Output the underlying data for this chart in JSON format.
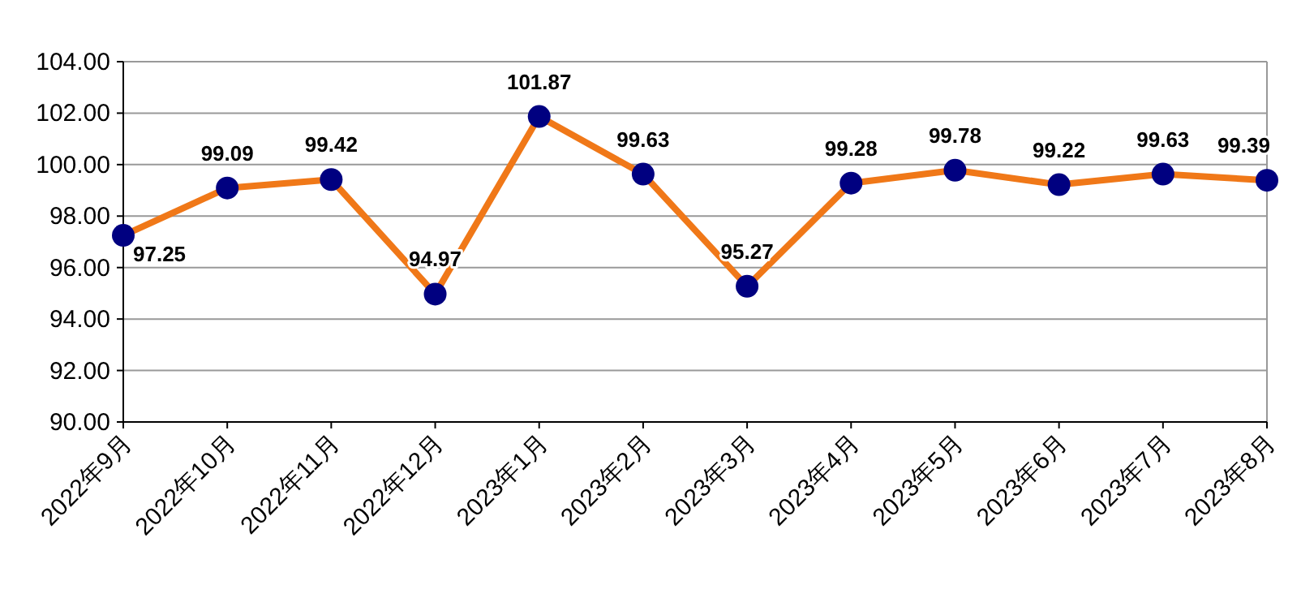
{
  "chart_data": {
    "type": "line",
    "categories": [
      "2022年9月",
      "2022年10月",
      "2022年11月",
      "2022年12月",
      "2023年1月",
      "2023年2月",
      "2023年3月",
      "2023年4月",
      "2023年5月",
      "2023年6月",
      "2023年7月",
      "2023年8月"
    ],
    "values": [
      97.25,
      99.09,
      99.42,
      94.97,
      101.87,
      99.63,
      95.27,
      99.28,
      99.78,
      99.22,
      99.63,
      99.39
    ],
    "color": "#f07818",
    "colors": [
      "#000080",
      "#000080",
      "#000080",
      "#000080",
      "#000080",
      "#000080",
      "#000080",
      "#000080",
      "#000080",
      "#000080",
      "#000080",
      "#000080"
    ],
    "marker": "circle",
    "line_style": "solid",
    "data_labels": true,
    "grid": "y",
    "ylim": [
      90,
      104
    ],
    "yticks": [
      {
        "value": 90,
        "label": "90.00"
      },
      {
        "value": 92,
        "label": "92.00"
      },
      {
        "value": 94,
        "label": "94.00"
      },
      {
        "value": 96,
        "label": "96.00"
      },
      {
        "value": 98,
        "label": "98.00"
      },
      {
        "value": 100,
        "label": "100.00"
      },
      {
        "value": 102,
        "label": "102.00"
      },
      {
        "value": 104,
        "label": "104.00"
      }
    ]
  }
}
